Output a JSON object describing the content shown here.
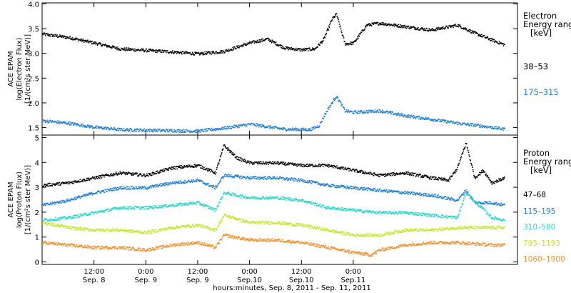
{
  "chart_data": [
    {
      "type": "scatter",
      "panel": "electron",
      "ylabel": [
        "ACE EPAM",
        "log(Electron Flux)",
        "[1/(cm²s ster MeV)]"
      ],
      "ylim": [
        1.35,
        4.02
      ],
      "yticks": [
        "4.0",
        "3.5",
        "3.0",
        "2.5",
        "2.0",
        "1.5"
      ],
      "ytick_values": [
        4.0,
        3.5,
        3.0,
        2.5,
        2.0,
        1.5
      ],
      "legend_title": [
        "Electron",
        "Energy ranges",
        "[keV]"
      ],
      "series": [
        {
          "name": "38–53",
          "color": "#000000",
          "x": [
            0,
            6,
            12,
            18,
            24,
            30,
            36,
            42,
            48,
            52,
            56,
            60,
            63,
            65,
            67,
            68,
            70,
            72,
            75,
            78,
            84,
            90,
            96,
            100,
            104,
            107
          ],
          "y": [
            3.4,
            3.33,
            3.22,
            3.1,
            3.07,
            3.04,
            3.0,
            3.05,
            3.22,
            3.3,
            3.12,
            3.08,
            3.1,
            3.28,
            3.7,
            3.8,
            3.2,
            3.22,
            3.58,
            3.62,
            3.55,
            3.48,
            3.58,
            3.42,
            3.28,
            3.18
          ]
        },
        {
          "name": "175–315",
          "color": "#1f7fd6",
          "x": [
            0,
            6,
            12,
            18,
            24,
            30,
            36,
            42,
            48,
            56,
            62,
            64,
            66,
            68,
            70,
            72,
            78,
            84,
            90,
            96,
            102,
            107
          ],
          "y": [
            1.65,
            1.6,
            1.52,
            1.47,
            1.46,
            1.45,
            1.44,
            1.5,
            1.58,
            1.48,
            1.47,
            1.55,
            1.88,
            2.15,
            1.85,
            1.82,
            1.85,
            1.75,
            1.68,
            1.6,
            1.54,
            1.48
          ]
        }
      ]
    },
    {
      "type": "scatter",
      "panel": "proton",
      "ylabel": [
        "ACE EPAM",
        "log(Proton Flux)",
        "[1/(cm²s ster MeV)]"
      ],
      "ylim": [
        -0.1,
        5.1
      ],
      "yticks": [
        "5",
        "4",
        "3",
        "2",
        "1",
        "0"
      ],
      "ytick_values": [
        5,
        4,
        3,
        2,
        1,
        0
      ],
      "legend_title": [
        "Proton",
        "Energy ranges",
        "[keV]"
      ],
      "series": [
        {
          "name": "47–68",
          "color": "#000000",
          "x": [
            0,
            6,
            12,
            18,
            24,
            30,
            36,
            40,
            42,
            45,
            48,
            54,
            60,
            66,
            72,
            78,
            84,
            90,
            94,
            96,
            98,
            100,
            102,
            104,
            107
          ],
          "y": [
            3.1,
            3.2,
            3.4,
            3.6,
            3.5,
            3.8,
            3.9,
            3.6,
            4.7,
            4.2,
            4.0,
            4.0,
            3.9,
            3.9,
            3.7,
            3.5,
            3.6,
            3.4,
            3.3,
            3.8,
            4.8,
            3.4,
            3.7,
            3.2,
            3.4
          ]
        },
        {
          "name": "115–195",
          "color": "#1f7fd6",
          "x": [
            0,
            6,
            12,
            18,
            24,
            30,
            36,
            40,
            42,
            48,
            54,
            60,
            66,
            72,
            78,
            84,
            90,
            96,
            98,
            100,
            104,
            107
          ],
          "y": [
            2.3,
            2.5,
            2.8,
            3.0,
            3.0,
            3.2,
            3.3,
            3.0,
            3.5,
            3.4,
            3.4,
            3.3,
            3.1,
            3.0,
            2.9,
            2.8,
            2.7,
            2.5,
            2.9,
            2.4,
            2.4,
            2.3
          ]
        },
        {
          "name": "310–580",
          "color": "#27d6c9",
          "x": [
            0,
            6,
            12,
            18,
            24,
            30,
            36,
            40,
            42,
            48,
            54,
            60,
            66,
            72,
            78,
            84,
            90,
            96,
            98,
            104,
            107
          ],
          "y": [
            1.7,
            1.8,
            2.0,
            2.2,
            2.2,
            2.3,
            2.4,
            2.1,
            2.8,
            2.6,
            2.6,
            2.5,
            2.2,
            2.1,
            2.0,
            2.0,
            1.9,
            1.8,
            2.8,
            1.8,
            1.7
          ]
        },
        {
          "name": "795–1193",
          "color": "#c4e62a",
          "x": [
            0,
            6,
            12,
            18,
            24,
            30,
            36,
            40,
            42,
            48,
            54,
            60,
            66,
            72,
            78,
            84,
            90,
            96,
            104,
            107
          ],
          "y": [
            1.6,
            1.4,
            1.3,
            1.3,
            1.2,
            1.4,
            1.5,
            1.3,
            1.9,
            1.6,
            1.6,
            1.5,
            1.3,
            1.1,
            1.1,
            1.3,
            1.3,
            1.4,
            1.4,
            1.4
          ]
        },
        {
          "name": "1060–1900",
          "color": "#f0902a",
          "x": [
            0,
            6,
            12,
            18,
            24,
            30,
            36,
            40,
            42,
            48,
            54,
            60,
            66,
            72,
            76,
            78,
            84,
            90,
            96,
            104,
            107
          ],
          "y": [
            0.8,
            0.7,
            0.6,
            0.6,
            0.5,
            0.7,
            0.8,
            0.6,
            1.1,
            0.9,
            0.9,
            0.8,
            0.6,
            0.4,
            0.3,
            0.5,
            0.7,
            0.8,
            0.8,
            0.7,
            0.7
          ]
        }
      ]
    }
  ],
  "x_axis": {
    "xlim": [
      0,
      110
    ],
    "ticks": [
      {
        "x": 12,
        "time": "12:00",
        "date": "Sep. 8"
      },
      {
        "x": 24,
        "time": "0:00",
        "date": "Sep. 9"
      },
      {
        "x": 36,
        "time": "12:00",
        "date": "Sep. 9"
      },
      {
        "x": 48,
        "time": "0:00",
        "date": "Sep.10"
      },
      {
        "x": 60,
        "time": "12:00",
        "date": "Sep.10"
      },
      {
        "x": 72,
        "time": "0:00",
        "date": "Sep.11"
      }
    ],
    "xlabel": "hours:minutes, Sep.  8, 2011 - Sep. 11, 2011"
  }
}
